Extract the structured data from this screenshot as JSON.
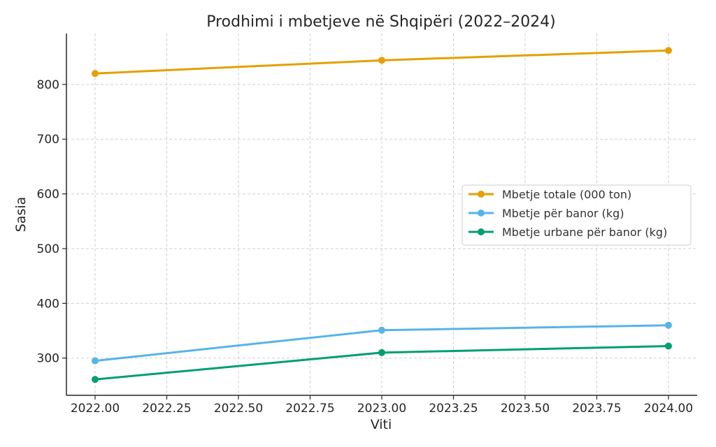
{
  "chart_data": {
    "type": "line",
    "title": "Prodhimi i mbetjeve në Shqipëri (2022–2024)",
    "xlabel": "Viti",
    "ylabel": "Sasia",
    "x": [
      2022,
      2023,
      2024
    ],
    "xlim": [
      2021.9,
      2024.1
    ],
    "ylim": [
      232,
      893
    ],
    "xticks": [
      2022.0,
      2022.25,
      2022.5,
      2022.75,
      2023.0,
      2023.25,
      2023.5,
      2023.75,
      2024.0
    ],
    "xtick_labels": [
      "2022.00",
      "2022.25",
      "2022.50",
      "2022.75",
      "2023.00",
      "2023.25",
      "2023.50",
      "2023.75",
      "2024.00"
    ],
    "yticks": [
      300,
      400,
      500,
      600,
      700,
      800
    ],
    "ytick_labels": [
      "300",
      "400",
      "500",
      "600",
      "700",
      "800"
    ],
    "grid": true,
    "legend_position": "center-right",
    "series": [
      {
        "name": "Mbetje totale (000 ton)",
        "color": "#E69F00",
        "values": [
          820,
          844,
          862
        ]
      },
      {
        "name": "Mbetje për banor (kg)",
        "color": "#56B4E9",
        "values": [
          295,
          351,
          360
        ]
      },
      {
        "name": "Mbetje urbane për banor (kg)",
        "color": "#009E73",
        "values": [
          261,
          310,
          322
        ]
      }
    ]
  }
}
